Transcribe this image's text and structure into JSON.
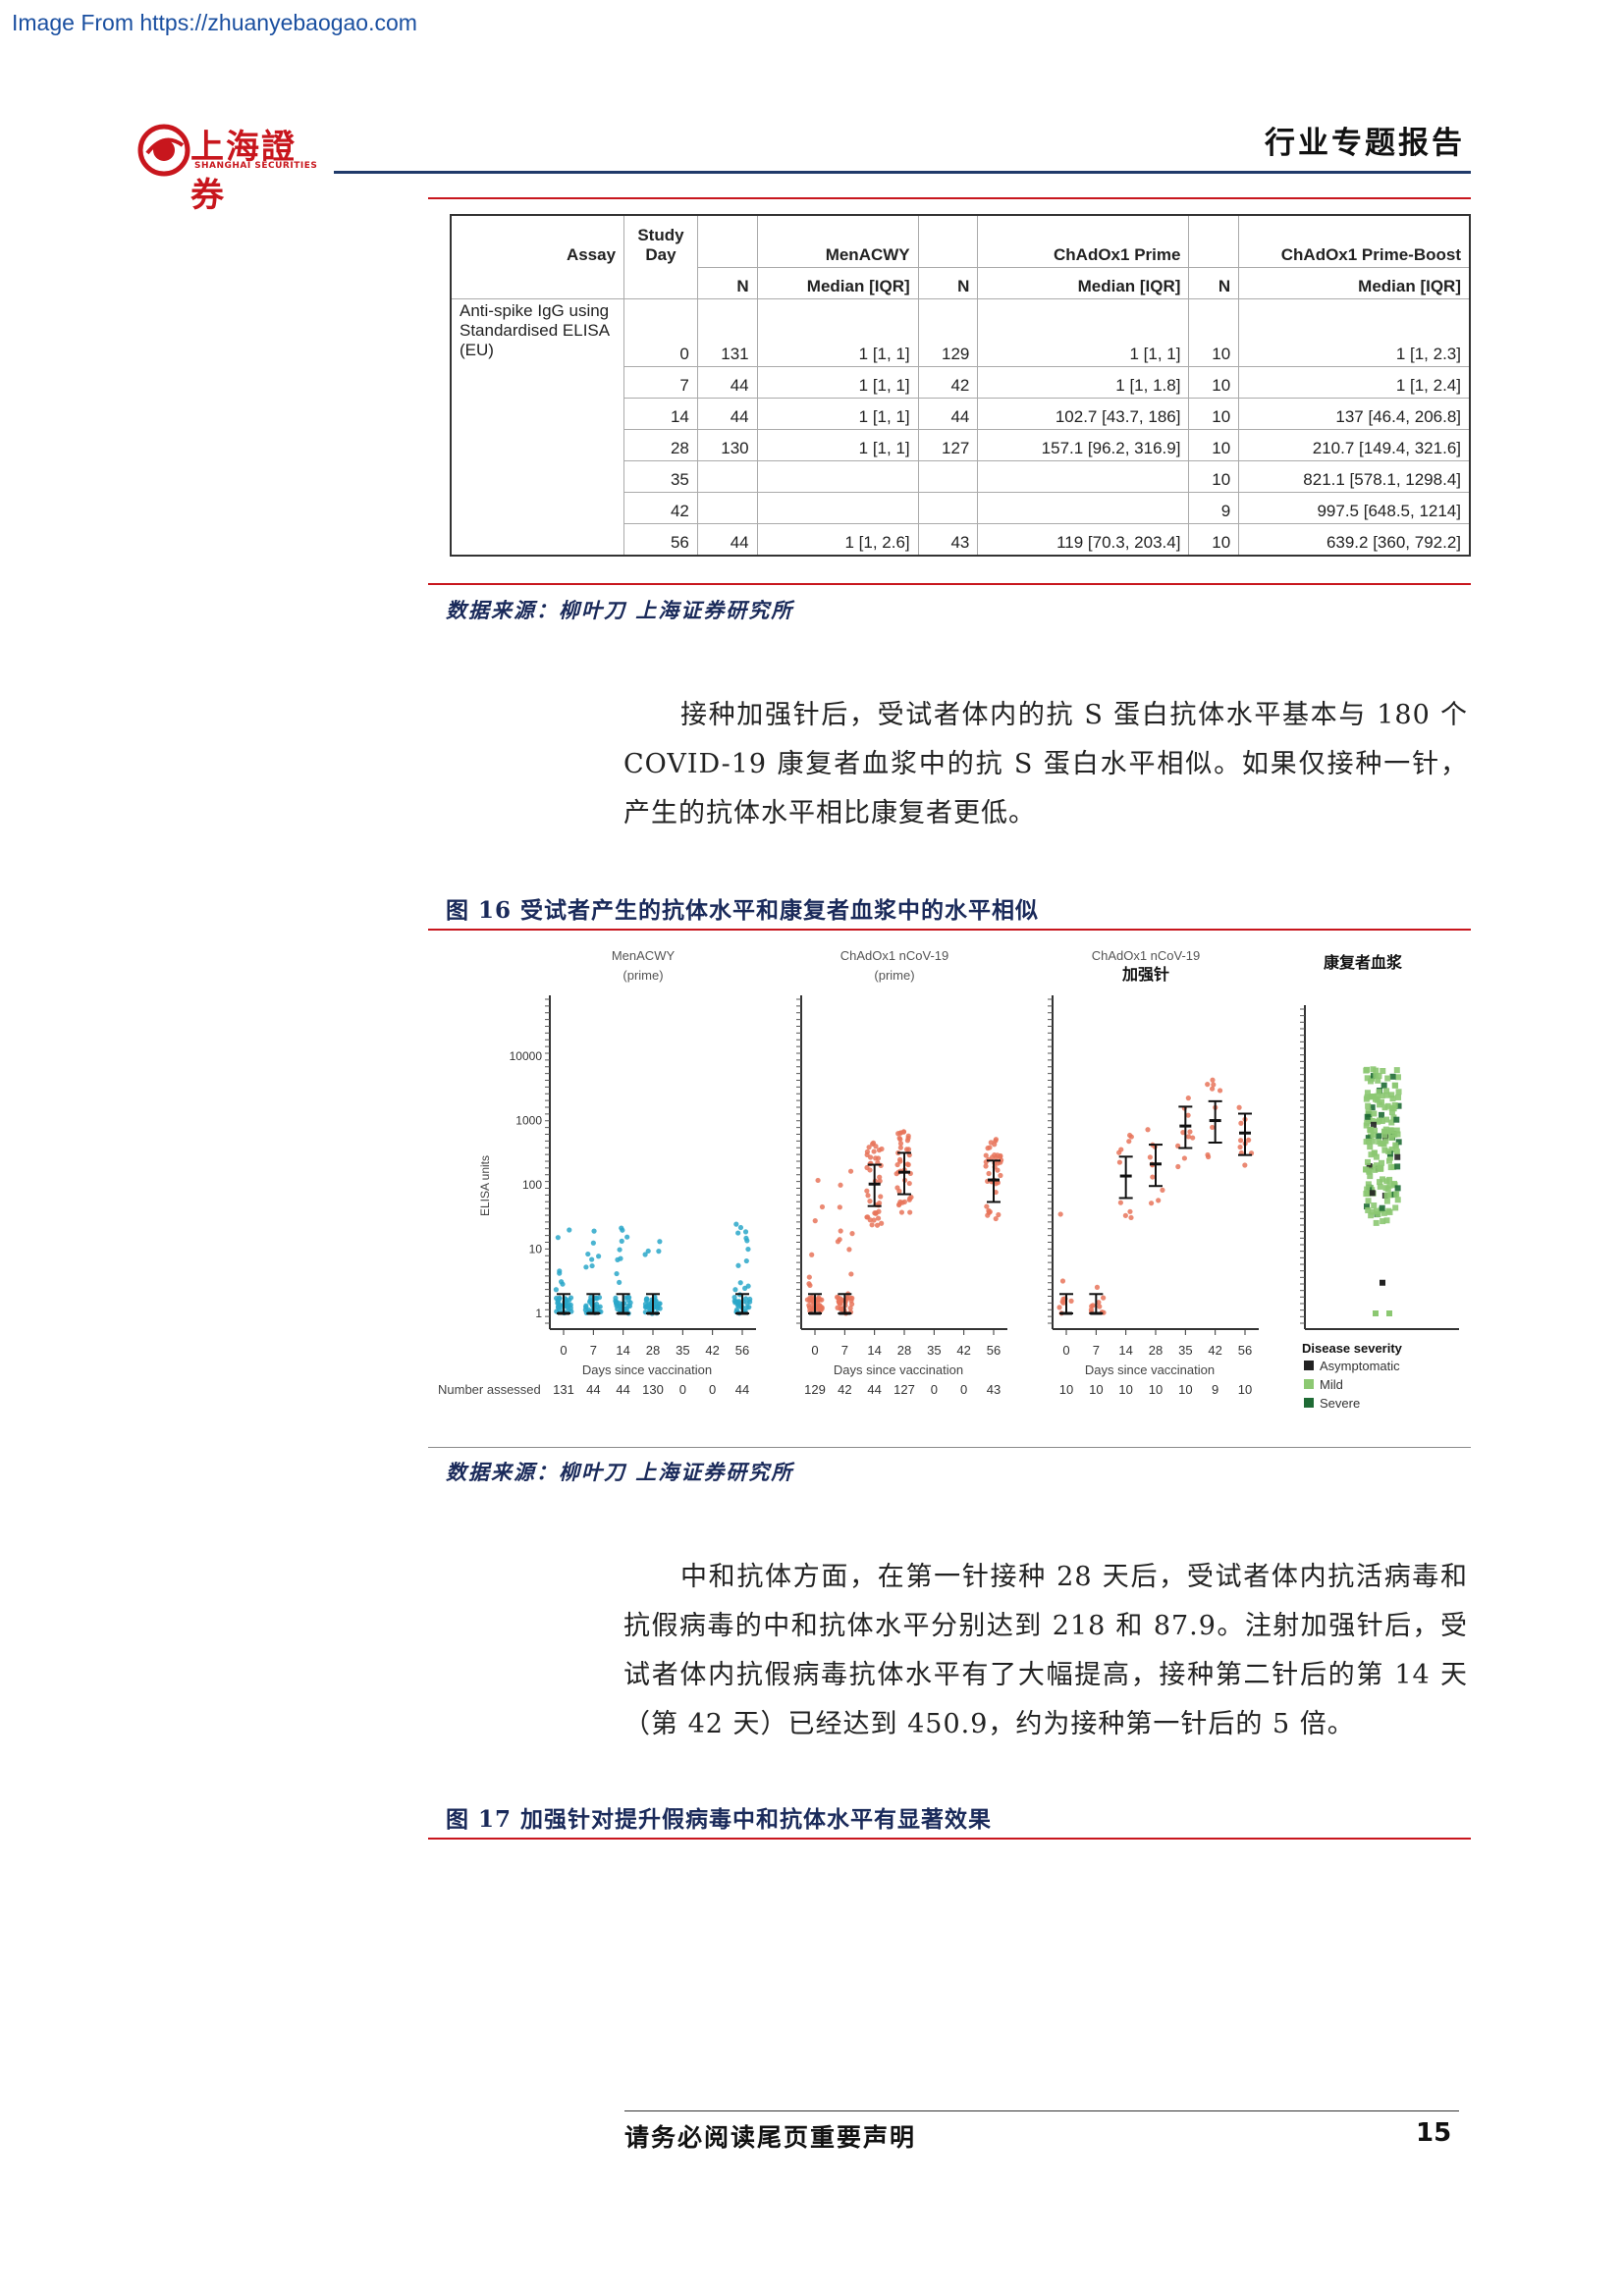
{
  "watermark": "Image From https://zhuanyebaogao.com",
  "header": {
    "logo_cn": "上海證券",
    "logo_en": "SHANGHAI SECURITIES",
    "title": "行业专题报告"
  },
  "table": {
    "headers": {
      "assay": "Assay",
      "study_day": "Study Day",
      "menacwy": "MenACWY",
      "prime": "ChAdOx1 Prime",
      "boost": "ChAdOx1 Prime-Boost",
      "n": "N",
      "median": "Median [IQR]"
    },
    "assay_name": "Anti-spike IgG using Standardised ELISA (EU)",
    "rows": [
      {
        "day": "0",
        "n1": "131",
        "m1": "1 [1, 1]",
        "n2": "129",
        "m2": "1 [1, 1]",
        "n3": "10",
        "m3": "1 [1, 2.3]"
      },
      {
        "day": "7",
        "n1": "44",
        "m1": "1 [1, 1]",
        "n2": "42",
        "m2": "1 [1, 1.8]",
        "n3": "10",
        "m3": "1 [1, 2.4]"
      },
      {
        "day": "14",
        "n1": "44",
        "m1": "1 [1, 1]",
        "n2": "44",
        "m2": "102.7 [43.7, 186]",
        "n3": "10",
        "m3": "137 [46.4, 206.8]"
      },
      {
        "day": "28",
        "n1": "130",
        "m1": "1 [1, 1]",
        "n2": "127",
        "m2": "157.1 [96.2, 316.9]",
        "n3": "10",
        "m3": "210.7 [149.4, 321.6]"
      },
      {
        "day": "35",
        "n1": "",
        "m1": "",
        "n2": "",
        "m2": "",
        "n3": "10",
        "m3": "821.1 [578.1, 1298.4]"
      },
      {
        "day": "42",
        "n1": "",
        "m1": "",
        "n2": "",
        "m2": "",
        "n3": "9",
        "m3": "997.5 [648.5, 1214]"
      },
      {
        "day": "56",
        "n1": "44",
        "m1": "1 [1, 2.6]",
        "n2": "43",
        "m2": "119 [70.3, 203.4]",
        "n3": "10",
        "m3": "639.2 [360, 792.2]"
      }
    ]
  },
  "source1": "数据来源：柳叶刀 上海证券研究所",
  "para1": "接种加强针后，受试者体内的抗 S 蛋白抗体水平基本与 180 个 COVID-19 康复者血浆中的抗 S 蛋白水平相似。如果仅接种一针，产生的抗体水平相比康复者更低。",
  "fig16_title": "图 16 受试者产生的抗体水平和康复者血浆中的水平相似",
  "chart_data": {
    "type": "scatter",
    "ylabel": "ELISA units",
    "yscale": "log",
    "ylim": [
      1,
      10000
    ],
    "yticks": [
      "1",
      "10",
      "100",
      "1000",
      "10000"
    ],
    "xlabel": "Days since vaccination",
    "x_ticks": [
      "0",
      "7",
      "14",
      "28",
      "35",
      "42",
      "56"
    ],
    "number_assessed_label": "Number assessed",
    "panels": [
      {
        "title": "MenACWY",
        "subtitle": "(prime)",
        "color": "#2aa7c9",
        "number_assessed": [
          "131",
          "44",
          "44",
          "130",
          "0",
          "0",
          "44"
        ],
        "medians": [
          1,
          1,
          1,
          1,
          null,
          null,
          1
        ]
      },
      {
        "title": "ChAdOx1 nCoV-19",
        "subtitle": "(prime)",
        "color": "#e8745a",
        "number_assessed": [
          "129",
          "42",
          "44",
          "127",
          "0",
          "0",
          "43"
        ],
        "medians": [
          1,
          1,
          102.7,
          157.1,
          null,
          null,
          119
        ]
      },
      {
        "title": "ChAdOx1 nCoV-19",
        "subtitle": "加强针",
        "color": "#e8745a",
        "number_assessed": [
          "10",
          "10",
          "10",
          "10",
          "10",
          "9",
          "10"
        ],
        "medians": [
          1,
          1,
          137,
          210.7,
          821.1,
          997.5,
          639.2
        ]
      }
    ],
    "convalescent": {
      "title": "康复者血浆",
      "legend_title": "Disease severity",
      "legend": [
        {
          "label": "Asymptomatic",
          "color": "#222222"
        },
        {
          "label": "Mild",
          "color": "#8cc872"
        },
        {
          "label": "Severe",
          "color": "#1f6b35"
        }
      ]
    }
  },
  "source2": "数据来源：柳叶刀 上海证券研究所",
  "para2": "中和抗体方面，在第一针接种 28 天后，受试者体内抗活病毒和抗假病毒的中和抗体水平分别达到 218 和 87.9。注射加强针后，受试者体内抗假病毒抗体水平有了大幅提高，接种第二针后的第 14 天（第 42 天）已经达到 450.9，约为接种第一针后的 5 倍。",
  "fig17_title": "图 17 加强针对提升假病毒中和抗体水平有显著效果",
  "footer": {
    "note": "请务必阅读尾页重要声明",
    "page": "15"
  }
}
